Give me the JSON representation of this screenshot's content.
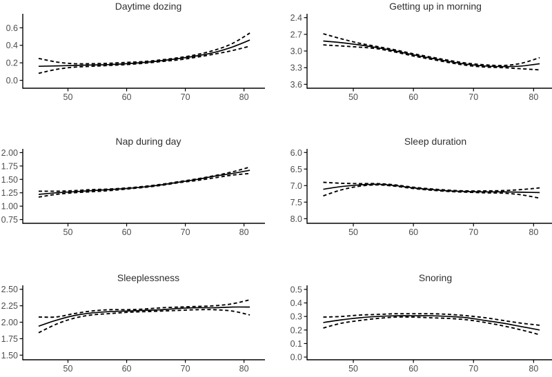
{
  "figure": {
    "background": "#ffffff"
  },
  "colors": {
    "line": "#000000",
    "axis": "#000000",
    "tick_label": "#4d4d4d",
    "title": "#303030"
  },
  "chart_data": {
    "type": "line",
    "layout": "2x3 grid of smoothed-curve panels with dashed 95% confidence bands",
    "grid": false,
    "legend": "none",
    "x_ticks": [
      50,
      60,
      70,
      80
    ],
    "x_range_data": [
      45,
      81
    ],
    "panels": [
      {
        "title": "Daytime dozing",
        "xlim": [
          42.3,
          83.1
        ],
        "ylim_bottom": -0.09,
        "ylim_top": 0.76,
        "y_reversed": false,
        "y_ticks": {
          "values": [
            0.0,
            0.2,
            0.4,
            0.6
          ],
          "labels": [
            "0.0",
            "0.2",
            "0.4",
            "0.6"
          ]
        },
        "x": [
          45,
          48,
          51,
          54,
          57,
          60,
          63,
          66,
          69,
          72,
          75,
          78,
          81
        ],
        "series": [
          {
            "name": "estimate",
            "style": "solid",
            "values": [
              0.16,
              0.165,
              0.17,
              0.175,
              0.18,
              0.19,
              0.205,
              0.225,
              0.25,
              0.28,
              0.32,
              0.38,
              0.46
            ]
          },
          {
            "name": "ci-upper",
            "style": "dashed",
            "values": [
              0.25,
              0.21,
              0.19,
              0.19,
              0.195,
              0.205,
              0.215,
              0.235,
              0.26,
              0.295,
              0.345,
              0.42,
              0.54
            ]
          },
          {
            "name": "ci-lower",
            "style": "dashed",
            "values": [
              0.08,
              0.125,
              0.15,
              0.16,
              0.17,
              0.18,
              0.195,
              0.215,
              0.235,
              0.265,
              0.3,
              0.34,
              0.39
            ]
          }
        ]
      },
      {
        "title": "Getting up in morning",
        "xlim": [
          42.3,
          82.6
        ],
        "ylim_bottom": 3.67,
        "ylim_top": 2.33,
        "y_reversed": true,
        "y_ticks": {
          "values": [
            2.4,
            2.7,
            3.0,
            3.3,
            3.6
          ],
          "labels": [
            "2.4",
            "2.7",
            "3.0",
            "3.3",
            "3.6"
          ]
        },
        "x": [
          45,
          48,
          51,
          54,
          57,
          60,
          63,
          66,
          69,
          72,
          75,
          78,
          81
        ],
        "series": [
          {
            "name": "estimate",
            "style": "solid",
            "values": [
              2.82,
              2.85,
              2.89,
              2.94,
              3.0,
              3.07,
              3.13,
              3.19,
              3.24,
              3.27,
              3.28,
              3.27,
              3.23
            ]
          },
          {
            "name": "ci-upper",
            "style": "dashed",
            "values": [
              2.69,
              2.78,
              2.86,
              2.92,
              2.98,
              3.05,
              3.11,
              3.17,
              3.22,
              3.25,
              3.26,
              3.22,
              3.12
            ]
          },
          {
            "name": "ci-lower",
            "style": "dashed",
            "values": [
              2.89,
              2.91,
              2.93,
              2.96,
              3.02,
              3.09,
              3.15,
              3.21,
              3.26,
              3.29,
              3.3,
              3.32,
              3.34
            ]
          }
        ]
      },
      {
        "title": "Nap during day",
        "xlim": [
          42.3,
          83.1
        ],
        "ylim_bottom": 0.68,
        "ylim_top": 2.07,
        "y_reversed": false,
        "y_ticks": {
          "values": [
            2.0,
            1.75,
            1.5,
            1.25,
            1.0,
            0.75
          ],
          "labels": [
            "2.00",
            "1.75",
            "1.50",
            "1.25",
            "1.00",
            "0.75"
          ]
        },
        "x": [
          45,
          48,
          51,
          54,
          57,
          60,
          63,
          66,
          69,
          72,
          75,
          78,
          81
        ],
        "series": [
          {
            "name": "estimate",
            "style": "solid",
            "values": [
              1.22,
              1.25,
              1.27,
              1.29,
              1.31,
              1.33,
              1.36,
              1.4,
              1.45,
              1.5,
              1.56,
              1.61,
              1.67
            ]
          },
          {
            "name": "ci-upper",
            "style": "dashed",
            "values": [
              1.28,
              1.28,
              1.29,
              1.31,
              1.32,
              1.34,
              1.37,
              1.41,
              1.46,
              1.51,
              1.57,
              1.64,
              1.73
            ]
          },
          {
            "name": "ci-lower",
            "style": "dashed",
            "values": [
              1.17,
              1.22,
              1.25,
              1.27,
              1.29,
              1.32,
              1.35,
              1.39,
              1.44,
              1.48,
              1.53,
              1.58,
              1.61
            ]
          }
        ]
      },
      {
        "title": "Sleep duration",
        "xlim": [
          42.3,
          82.6
        ],
        "ylim_bottom": 8.14,
        "ylim_top": 5.89,
        "y_reversed": true,
        "y_ticks": {
          "values": [
            6.0,
            6.5,
            7.0,
            7.5,
            8.0
          ],
          "labels": [
            "6.0",
            "6.5",
            "7.0",
            "7.5",
            "8.0"
          ]
        },
        "x": [
          45,
          48,
          51,
          54,
          57,
          60,
          63,
          66,
          69,
          72,
          75,
          78,
          81
        ],
        "series": [
          {
            "name": "estimate",
            "style": "solid",
            "values": [
              7.11,
              7.03,
              6.98,
              6.96,
              7.0,
              7.07,
              7.12,
              7.16,
              7.18,
              7.19,
              7.19,
              7.2,
              7.21
            ]
          },
          {
            "name": "ci-upper",
            "style": "dashed",
            "values": [
              6.9,
              6.93,
              6.94,
              6.94,
              6.98,
              7.05,
              7.1,
              7.14,
              7.16,
              7.16,
              7.15,
              7.12,
              7.07
            ]
          },
          {
            "name": "ci-lower",
            "style": "dashed",
            "values": [
              7.31,
              7.13,
              7.02,
              6.98,
              7.02,
              7.09,
              7.14,
              7.18,
              7.2,
              7.22,
              7.23,
              7.28,
              7.38
            ]
          }
        ]
      },
      {
        "title": "Sleeplessness",
        "xlim": [
          42.3,
          83.1
        ],
        "ylim_bottom": 1.43,
        "ylim_top": 2.56,
        "y_reversed": false,
        "y_ticks": {
          "values": [
            2.5,
            2.25,
            2.0,
            1.75,
            1.5
          ],
          "labels": [
            "2.50",
            "2.25",
            "2.00",
            "1.75",
            "1.50"
          ]
        },
        "x": [
          45,
          48,
          51,
          54,
          57,
          60,
          63,
          66,
          69,
          72,
          75,
          78,
          81
        ],
        "series": [
          {
            "name": "estimate",
            "style": "solid",
            "values": [
              1.94,
              2.03,
              2.1,
              2.14,
              2.16,
              2.17,
              2.18,
              2.19,
              2.21,
              2.22,
              2.22,
              2.23,
              2.23
            ]
          },
          {
            "name": "ci-upper",
            "style": "dashed",
            "values": [
              2.08,
              2.08,
              2.13,
              2.17,
              2.19,
              2.19,
              2.2,
              2.22,
              2.23,
              2.24,
              2.25,
              2.28,
              2.34
            ]
          },
          {
            "name": "ci-lower",
            "style": "dashed",
            "values": [
              1.84,
              1.97,
              2.06,
              2.11,
              2.13,
              2.15,
              2.16,
              2.17,
              2.18,
              2.19,
              2.19,
              2.17,
              2.11
            ]
          }
        ]
      },
      {
        "title": "Snoring",
        "xlim": [
          42.3,
          82.6
        ],
        "ylim_bottom": -0.02,
        "ylim_top": 0.53,
        "y_reversed": false,
        "y_ticks": {
          "values": [
            0.5,
            0.4,
            0.3,
            0.2,
            0.1,
            0.0
          ],
          "labels": [
            "0.5",
            "0.4",
            "0.3",
            "0.2",
            "0.1",
            "0.0"
          ]
        },
        "x": [
          45,
          48,
          51,
          54,
          57,
          60,
          63,
          66,
          69,
          72,
          75,
          78,
          81
        ],
        "series": [
          {
            "name": "estimate",
            "style": "solid",
            "values": [
              0.255,
              0.275,
              0.29,
              0.3,
              0.305,
              0.305,
              0.305,
              0.3,
              0.29,
              0.27,
              0.25,
              0.225,
              0.2
            ]
          },
          {
            "name": "ci-upper",
            "style": "dashed",
            "values": [
              0.295,
              0.3,
              0.31,
              0.315,
              0.32,
              0.32,
              0.32,
              0.315,
              0.305,
              0.29,
              0.27,
              0.25,
              0.235
            ]
          },
          {
            "name": "ci-lower",
            "style": "dashed",
            "values": [
              0.215,
              0.25,
              0.27,
              0.285,
              0.295,
              0.295,
              0.29,
              0.285,
              0.275,
              0.255,
              0.23,
              0.2,
              0.165
            ]
          }
        ]
      }
    ]
  }
}
